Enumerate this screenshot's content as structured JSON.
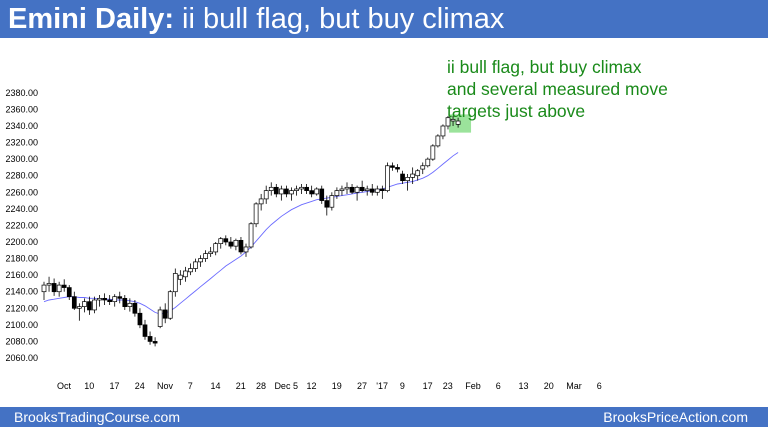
{
  "header": {
    "title_bold": "Emini Daily:",
    "title_rest": " ii bull flag, but buy climax"
  },
  "annotation": {
    "lines": [
      "ii bull flag, but buy climax",
      "and several measured move",
      "targets just above"
    ],
    "color": "#1a8a1a"
  },
  "footer": {
    "left": "BrooksTradingCourse.com",
    "right": "BrooksPriceAction.com"
  },
  "colors": {
    "bar_accent": "#4472c4",
    "moving_average": "#6b6bff",
    "highlight_box": "#9be39b"
  },
  "chart_data": {
    "type": "candlestick",
    "title": "Emini Daily: ii bull flag, but buy climax",
    "ylim": [
      2050,
      2390
    ],
    "y_ticks": [
      "2060.00",
      "2080.00",
      "2100.00",
      "2120.00",
      "2140.00",
      "2160.00",
      "2180.00",
      "2200.00",
      "2220.00",
      "2240.00",
      "2260.00",
      "2280.00",
      "2300.00",
      "2320.00",
      "2340.00",
      "2360.00",
      "2380.00"
    ],
    "x_ticks": [
      {
        "label": "Oct",
        "index": 0
      },
      {
        "label": "10",
        "index": 5
      },
      {
        "label": "17",
        "index": 10
      },
      {
        "label": "24",
        "index": 15
      },
      {
        "label": "Nov",
        "index": 20
      },
      {
        "label": "7",
        "index": 25
      },
      {
        "label": "14",
        "index": 30
      },
      {
        "label": "21",
        "index": 35
      },
      {
        "label": "28",
        "index": 39
      },
      {
        "label": "Dec 5",
        "index": 44
      },
      {
        "label": "12",
        "index": 49
      },
      {
        "label": "19",
        "index": 54
      },
      {
        "label": "27",
        "index": 59
      },
      {
        "label": "'17",
        "index": 63
      },
      {
        "label": "9",
        "index": 67
      },
      {
        "label": "17",
        "index": 72
      },
      {
        "label": "23",
        "index": 76
      },
      {
        "label": "Feb",
        "index": 81
      },
      {
        "label": "6",
        "index": 86
      },
      {
        "label": "13",
        "index": 91
      },
      {
        "label": "20",
        "index": 96
      },
      {
        "label": "Mar",
        "index": 101
      },
      {
        "label": "6",
        "index": 106
      }
    ],
    "candles": [
      {
        "o": 2140,
        "h": 2152,
        "l": 2130,
        "c": 2148
      },
      {
        "o": 2148,
        "h": 2158,
        "l": 2140,
        "c": 2150
      },
      {
        "o": 2150,
        "h": 2156,
        "l": 2135,
        "c": 2140
      },
      {
        "o": 2140,
        "h": 2152,
        "l": 2134,
        "c": 2148
      },
      {
        "o": 2148,
        "h": 2155,
        "l": 2140,
        "c": 2145
      },
      {
        "o": 2145,
        "h": 2148,
        "l": 2130,
        "c": 2134
      },
      {
        "o": 2134,
        "h": 2140,
        "l": 2118,
        "c": 2120
      },
      {
        "o": 2120,
        "h": 2126,
        "l": 2105,
        "c": 2122
      },
      {
        "o": 2122,
        "h": 2132,
        "l": 2115,
        "c": 2128
      },
      {
        "o": 2128,
        "h": 2134,
        "l": 2112,
        "c": 2118
      },
      {
        "o": 2118,
        "h": 2134,
        "l": 2114,
        "c": 2130
      },
      {
        "o": 2130,
        "h": 2136,
        "l": 2122,
        "c": 2132
      },
      {
        "o": 2132,
        "h": 2138,
        "l": 2124,
        "c": 2130
      },
      {
        "o": 2130,
        "h": 2136,
        "l": 2124,
        "c": 2128
      },
      {
        "o": 2128,
        "h": 2137,
        "l": 2122,
        "c": 2134
      },
      {
        "o": 2134,
        "h": 2140,
        "l": 2126,
        "c": 2132
      },
      {
        "o": 2132,
        "h": 2136,
        "l": 2118,
        "c": 2122
      },
      {
        "o": 2122,
        "h": 2132,
        "l": 2116,
        "c": 2126
      },
      {
        "o": 2126,
        "h": 2130,
        "l": 2110,
        "c": 2114
      },
      {
        "o": 2114,
        "h": 2120,
        "l": 2096,
        "c": 2100
      },
      {
        "o": 2100,
        "h": 2106,
        "l": 2082,
        "c": 2086
      },
      {
        "o": 2086,
        "h": 2092,
        "l": 2076,
        "c": 2080
      },
      {
        "o": 2080,
        "h": 2085,
        "l": 2074,
        "c": 2078
      },
      {
        "o": 2098,
        "h": 2122,
        "l": 2096,
        "c": 2118
      },
      {
        "o": 2118,
        "h": 2126,
        "l": 2102,
        "c": 2108
      },
      {
        "o": 2108,
        "h": 2142,
        "l": 2106,
        "c": 2140
      },
      {
        "o": 2140,
        "h": 2168,
        "l": 2134,
        "c": 2162
      },
      {
        "o": 2155,
        "h": 2166,
        "l": 2148,
        "c": 2160
      },
      {
        "o": 2158,
        "h": 2170,
        "l": 2152,
        "c": 2165
      },
      {
        "o": 2164,
        "h": 2174,
        "l": 2160,
        "c": 2168
      },
      {
        "o": 2168,
        "h": 2180,
        "l": 2164,
        "c": 2176
      },
      {
        "o": 2176,
        "h": 2184,
        "l": 2170,
        "c": 2180
      },
      {
        "o": 2180,
        "h": 2190,
        "l": 2176,
        "c": 2186
      },
      {
        "o": 2186,
        "h": 2194,
        "l": 2182,
        "c": 2188
      },
      {
        "o": 2188,
        "h": 2200,
        "l": 2184,
        "c": 2198
      },
      {
        "o": 2198,
        "h": 2206,
        "l": 2192,
        "c": 2204
      },
      {
        "o": 2204,
        "h": 2208,
        "l": 2196,
        "c": 2200
      },
      {
        "o": 2200,
        "h": 2206,
        "l": 2192,
        "c": 2195
      },
      {
        "o": 2195,
        "h": 2204,
        "l": 2190,
        "c": 2202
      },
      {
        "o": 2202,
        "h": 2206,
        "l": 2185,
        "c": 2188
      },
      {
        "o": 2188,
        "h": 2198,
        "l": 2182,
        "c": 2194
      },
      {
        "o": 2194,
        "h": 2224,
        "l": 2192,
        "c": 2222
      },
      {
        "o": 2222,
        "h": 2248,
        "l": 2218,
        "c": 2246
      },
      {
        "o": 2246,
        "h": 2258,
        "l": 2238,
        "c": 2252
      },
      {
        "o": 2252,
        "h": 2268,
        "l": 2246,
        "c": 2262
      },
      {
        "o": 2262,
        "h": 2272,
        "l": 2256,
        "c": 2266
      },
      {
        "o": 2266,
        "h": 2270,
        "l": 2254,
        "c": 2258
      },
      {
        "o": 2258,
        "h": 2268,
        "l": 2250,
        "c": 2264
      },
      {
        "o": 2264,
        "h": 2268,
        "l": 2254,
        "c": 2258
      },
      {
        "o": 2258,
        "h": 2266,
        "l": 2250,
        "c": 2262
      },
      {
        "o": 2262,
        "h": 2268,
        "l": 2256,
        "c": 2264
      },
      {
        "o": 2264,
        "h": 2270,
        "l": 2258,
        "c": 2266
      },
      {
        "o": 2266,
        "h": 2270,
        "l": 2258,
        "c": 2262
      },
      {
        "o": 2262,
        "h": 2268,
        "l": 2254,
        "c": 2258
      },
      {
        "o": 2258,
        "h": 2266,
        "l": 2256,
        "c": 2264
      },
      {
        "o": 2264,
        "h": 2268,
        "l": 2246,
        "c": 2250
      },
      {
        "o": 2250,
        "h": 2256,
        "l": 2232,
        "c": 2242
      },
      {
        "o": 2242,
        "h": 2260,
        "l": 2238,
        "c": 2256
      },
      {
        "o": 2256,
        "h": 2266,
        "l": 2252,
        "c": 2262
      },
      {
        "o": 2262,
        "h": 2268,
        "l": 2256,
        "c": 2264
      },
      {
        "o": 2264,
        "h": 2272,
        "l": 2258,
        "c": 2266
      },
      {
        "o": 2266,
        "h": 2270,
        "l": 2258,
        "c": 2260
      },
      {
        "o": 2260,
        "h": 2268,
        "l": 2250,
        "c": 2266
      },
      {
        "o": 2266,
        "h": 2274,
        "l": 2260,
        "c": 2262
      },
      {
        "o": 2262,
        "h": 2268,
        "l": 2256,
        "c": 2264
      },
      {
        "o": 2264,
        "h": 2270,
        "l": 2256,
        "c": 2260
      },
      {
        "o": 2260,
        "h": 2268,
        "l": 2256,
        "c": 2264
      },
      {
        "o": 2264,
        "h": 2268,
        "l": 2252,
        "c": 2262
      },
      {
        "o": 2262,
        "h": 2296,
        "l": 2260,
        "c": 2292
      },
      {
        "o": 2292,
        "h": 2296,
        "l": 2286,
        "c": 2290
      },
      {
        "o": 2290,
        "h": 2294,
        "l": 2284,
        "c": 2288
      },
      {
        "o": 2282,
        "h": 2286,
        "l": 2270,
        "c": 2274
      },
      {
        "o": 2274,
        "h": 2282,
        "l": 2262,
        "c": 2278
      },
      {
        "o": 2278,
        "h": 2290,
        "l": 2270,
        "c": 2282
      },
      {
        "o": 2280,
        "h": 2288,
        "l": 2274,
        "c": 2286
      },
      {
        "o": 2288,
        "h": 2296,
        "l": 2282,
        "c": 2292
      },
      {
        "o": 2292,
        "h": 2302,
        "l": 2290,
        "c": 2300
      },
      {
        "o": 2300,
        "h": 2318,
        "l": 2298,
        "c": 2316
      },
      {
        "o": 2316,
        "h": 2330,
        "l": 2314,
        "c": 2328
      },
      {
        "o": 2328,
        "h": 2342,
        "l": 2324,
        "c": 2340
      },
      {
        "o": 2340,
        "h": 2352,
        "l": 2336,
        "c": 2350
      },
      {
        "o": 2346,
        "h": 2352,
        "l": 2340,
        "c": 2348
      },
      {
        "o": 2342,
        "h": 2350,
        "l": 2338,
        "c": 2346
      }
    ],
    "moving_average": [
      2128,
      2130,
      2131,
      2132,
      2133,
      2134,
      2134,
      2133,
      2133,
      2132,
      2132,
      2131,
      2131,
      2131,
      2130,
      2130,
      2130,
      2129,
      2128,
      2126,
      2123,
      2119,
      2115,
      2113,
      2114,
      2117,
      2121,
      2126,
      2131,
      2136,
      2141,
      2146,
      2151,
      2156,
      2161,
      2166,
      2171,
      2175,
      2179,
      2183,
      2188,
      2194,
      2201,
      2208,
      2215,
      2221,
      2226,
      2231,
      2235,
      2239,
      2242,
      2245,
      2247,
      2249,
      2251,
      2252,
      2253,
      2254,
      2255,
      2256,
      2257,
      2258,
      2259,
      2260,
      2261,
      2262,
      2263,
      2264,
      2266,
      2268,
      2270,
      2271,
      2272,
      2273,
      2275,
      2277,
      2280,
      2284,
      2289,
      2294,
      2299,
      2304,
      2308
    ],
    "highlight": {
      "y_low": 2332,
      "y_high": 2354
    }
  }
}
